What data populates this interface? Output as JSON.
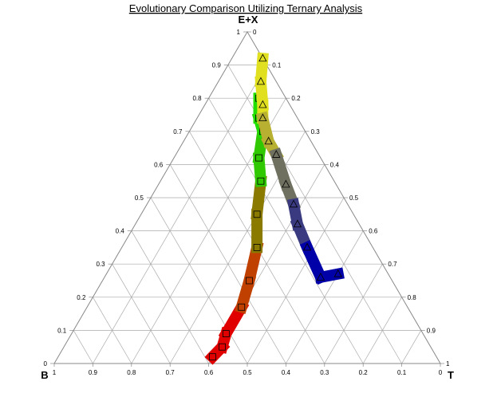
{
  "chart_data": {
    "type": "ternary",
    "title": "Evolutionary Comparison Utilizing Ternary Analysis",
    "axes": {
      "top": "E+X",
      "left": "B",
      "right": "T"
    },
    "tick_labels": {
      "left_edge": [
        "0",
        "0.1",
        "0.2",
        "0.3",
        "0.4",
        "0.5",
        "0.6",
        "0.7",
        "0.8",
        "0.9",
        "1"
      ],
      "right_edge": [
        "0",
        "0.1",
        "0.2",
        "0.3",
        "0.4",
        "0.5",
        "0.6",
        "0.7",
        "0.8",
        "0.9",
        "1"
      ],
      "bottom_edge": [
        "1",
        "0.9",
        "0.8",
        "0.7",
        "0.6",
        "0.5",
        "0.4",
        "0.3",
        "0.2",
        "0.1",
        "0"
      ]
    },
    "grid": true,
    "grid_step": 0.1,
    "series": [
      {
        "marker": "square",
        "gradient": [
          "#e00000",
          "#c04000",
          "#8a7a00",
          "#30c800",
          "#22dd00"
        ],
        "points": [
          {
            "ex": 0.02,
            "t": 0.4
          },
          {
            "ex": 0.05,
            "t": 0.41
          },
          {
            "ex": 0.09,
            "t": 0.4
          },
          {
            "ex": 0.17,
            "t": 0.4
          },
          {
            "ex": 0.25,
            "t": 0.38
          },
          {
            "ex": 0.35,
            "t": 0.35
          },
          {
            "ex": 0.45,
            "t": 0.3
          },
          {
            "ex": 0.55,
            "t": 0.26
          },
          {
            "ex": 0.62,
            "t": 0.22
          },
          {
            "ex": 0.7,
            "t": 0.19
          },
          {
            "ex": 0.74,
            "t": 0.16
          },
          {
            "ex": 0.8,
            "t": 0.13
          }
        ]
      },
      {
        "marker": "triangle",
        "gradient": [
          "#e0e020",
          "#b8b030",
          "#707060",
          "#3a3a80",
          "#0000a8"
        ],
        "points": [
          {
            "ex": 0.92,
            "t": 0.08
          },
          {
            "ex": 0.85,
            "t": 0.11
          },
          {
            "ex": 0.78,
            "t": 0.15
          },
          {
            "ex": 0.74,
            "t": 0.17
          },
          {
            "ex": 0.67,
            "t": 0.22
          },
          {
            "ex": 0.63,
            "t": 0.26
          },
          {
            "ex": 0.54,
            "t": 0.33
          },
          {
            "ex": 0.48,
            "t": 0.38
          },
          {
            "ex": 0.42,
            "t": 0.42
          },
          {
            "ex": 0.35,
            "t": 0.48
          },
          {
            "ex": 0.26,
            "t": 0.56
          },
          {
            "ex": 0.27,
            "t": 0.6
          }
        ]
      }
    ]
  }
}
